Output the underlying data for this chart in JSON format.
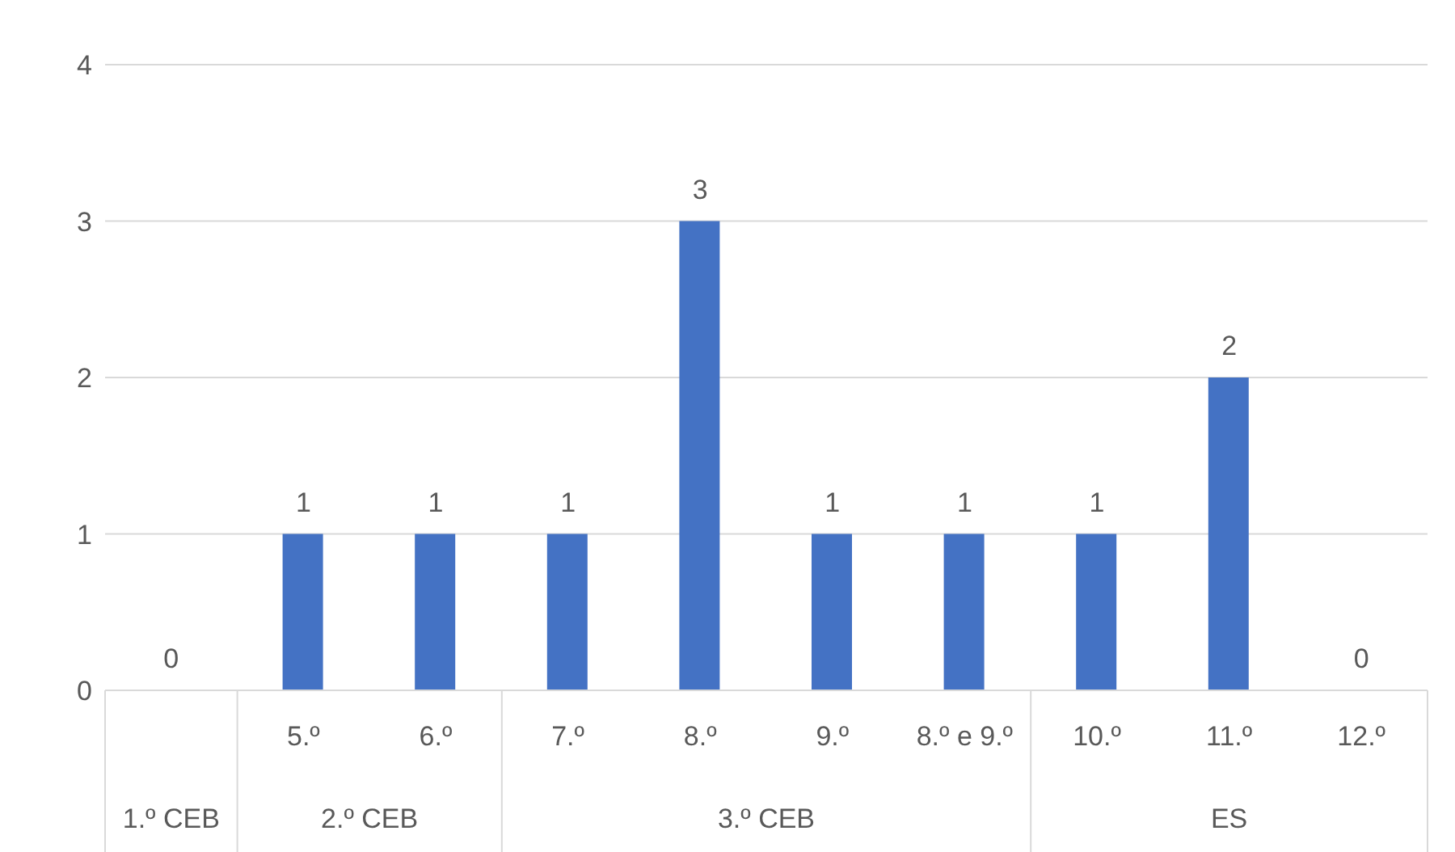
{
  "chart_data": {
    "type": "bar",
    "categories": [
      null,
      "5.º",
      "6.º",
      "7.º",
      "8.º",
      "9.º",
      "8.º e 9.º",
      "10.º",
      "11.º",
      "12.º"
    ],
    "values": [
      0,
      1,
      1,
      1,
      3,
      1,
      1,
      1,
      2,
      0
    ],
    "color": "#4472c4",
    "ylim": [
      0,
      4
    ],
    "yticks": [
      0,
      1,
      2,
      3,
      4
    ],
    "grid": "y",
    "data_labels": true,
    "legend": false,
    "annotations": [
      "1.º CEB",
      "2.º CEB",
      "3.º CEB",
      "ES"
    ]
  }
}
